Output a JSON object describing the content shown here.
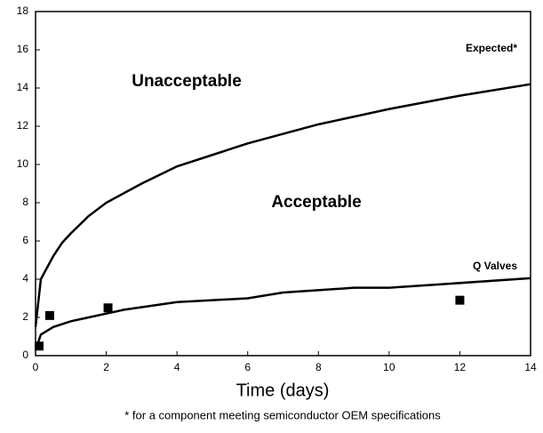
{
  "chart_data": {
    "type": "line",
    "x_label": "Time (days)",
    "footnote": "*  for a component meeting semiconductor OEM specifications",
    "annotations": [
      "Unacceptable",
      "Acceptable"
    ],
    "series": [
      {
        "name": "Expected*",
        "color": "#000000",
        "x": [
          0,
          0.15,
          0.5,
          0.75,
          1,
          1.5,
          2,
          2.5,
          3,
          4,
          5,
          6,
          7,
          8,
          9,
          10,
          12,
          14
        ],
        "values": [
          1.5,
          4,
          5.2,
          5.9,
          6.4,
          7.3,
          8,
          8.5,
          9,
          9.9,
          10.5,
          11.1,
          11.6,
          12.1,
          12.5,
          12.9,
          13.6,
          14.2
        ]
      },
      {
        "name": "Q Valves",
        "color": "#000000",
        "x": [
          0,
          0.15,
          0.5,
          1,
          1.5,
          2,
          2.5,
          4,
          6,
          7,
          9,
          10,
          14
        ],
        "values": [
          0.3,
          1.1,
          1.5,
          1.8,
          2,
          2.2,
          2.4,
          2.8,
          3.0,
          3.3,
          3.55,
          3.55,
          4.05
        ]
      }
    ],
    "markers": {
      "color": "#000000",
      "x": [
        0.1,
        0.4,
        2.05,
        12
      ],
      "values": [
        0.5,
        2.1,
        2.5,
        2.9
      ]
    },
    "xlim": [
      0,
      14
    ],
    "xticks": [
      0,
      2,
      4,
      6,
      8,
      10,
      12,
      14
    ],
    "ylim": [
      0,
      18
    ],
    "yticks": [
      0,
      2,
      4,
      6,
      8,
      10,
      12,
      14,
      16,
      18
    ]
  }
}
